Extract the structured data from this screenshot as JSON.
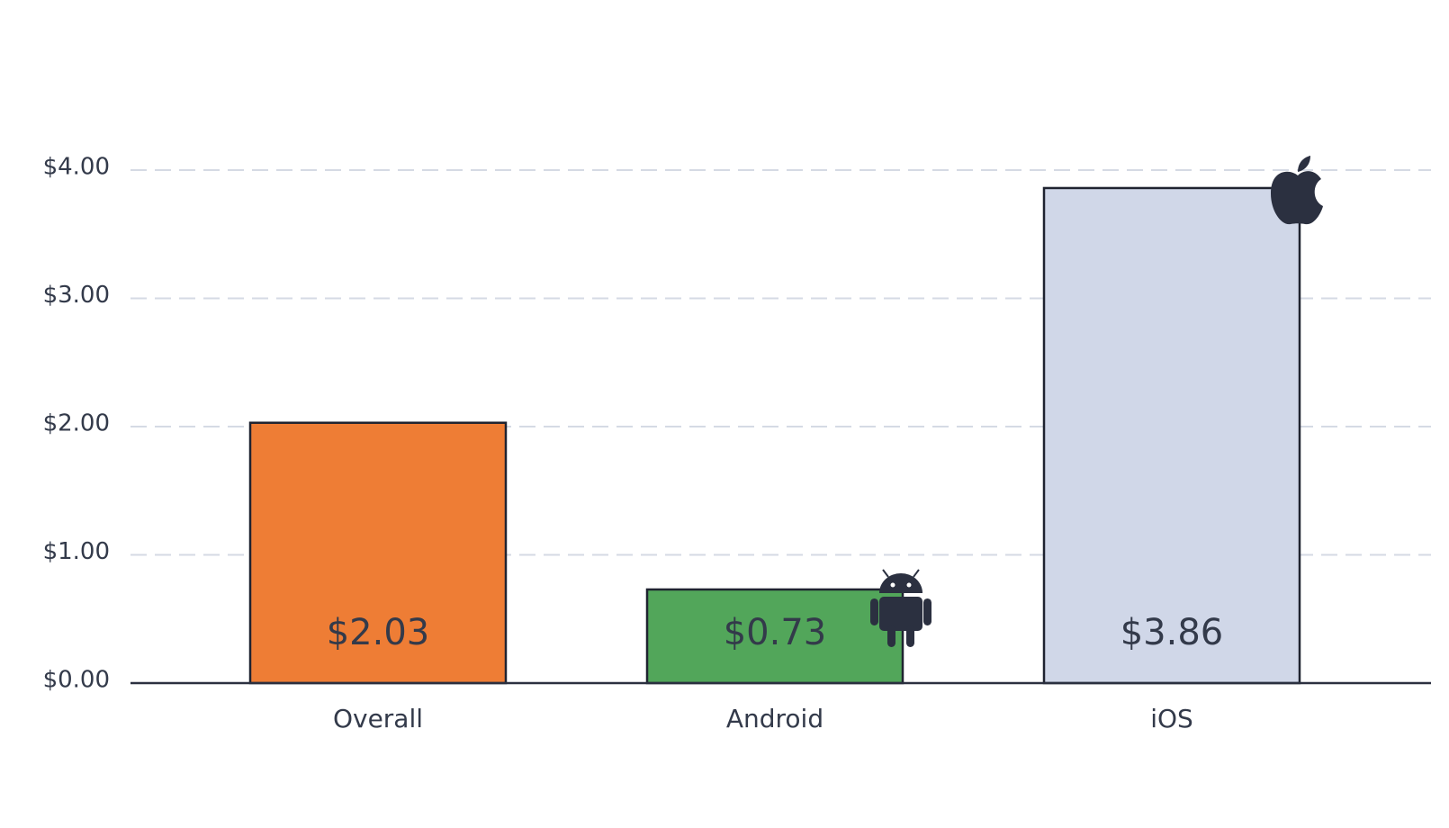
{
  "chart_data": {
    "type": "bar",
    "categories": [
      "Overall",
      "Android",
      "iOS"
    ],
    "values": [
      2.03,
      0.73,
      3.86
    ],
    "value_labels": [
      "$2.03",
      "$0.73",
      "$3.86"
    ],
    "colors": [
      "#ee7d35",
      "#52a65a",
      "#d0d7e8"
    ],
    "ylim": [
      0,
      4
    ],
    "yticks": [
      {
        "value": 0,
        "label": "$0.00"
      },
      {
        "value": 1,
        "label": "$1.00"
      },
      {
        "value": 2,
        "label": "$2.00"
      },
      {
        "value": 3,
        "label": "$3.00"
      },
      {
        "value": 4,
        "label": "$4.00"
      }
    ],
    "grid": true
  }
}
